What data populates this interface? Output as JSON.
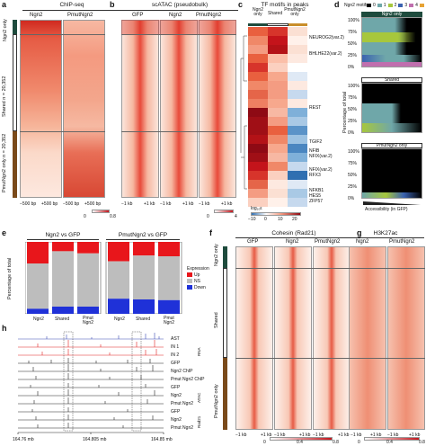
{
  "panels": {
    "a": {
      "letter": "a",
      "title": "ChIP-seq",
      "cols": [
        "Ngn2",
        "PmutNgn2"
      ],
      "rows": [
        "Ngn2 only",
        "Shared\nn = 20,352",
        "PmutNgn2 only\nn = 20,352"
      ],
      "xticks": [
        "−500 bp",
        "+500 bp",
        "−500 bp",
        "+500 bp"
      ],
      "scale": [
        "0",
        "0.8"
      ]
    },
    "b": {
      "letter": "b",
      "title": "scATAC (pseudobulk)",
      "cols": [
        "GFP",
        "Ngn2",
        "PmutNgn2"
      ],
      "xticks": [
        "−1 kb",
        "+1 kb",
        "−1 kb",
        "+1 kb",
        "−1 kb",
        "+1 kb"
      ],
      "scale": [
        "0",
        "4"
      ]
    },
    "c": {
      "letter": "c",
      "title": "TF motifs in peaks",
      "cols": [
        "Ngn2 only",
        "Shared",
        "PmutNgn2 only"
      ],
      "labels": [
        "NEUROG2(var.2)",
        "BHLHE22(var.2)",
        "REST",
        "TGIF2",
        "NFIB",
        "NFIX(var.2)",
        "NFIX(var.2)",
        "RFX3",
        "NFKB1",
        "HES5",
        "ZFP57"
      ],
      "scale_label": "log₁₀ε",
      "scale": [
        "−10",
        "0",
        "10",
        "20"
      ]
    },
    "d": {
      "letter": "d",
      "legend_title": "Ngn2 motifs",
      "legend_items": [
        "0",
        "1",
        "2",
        "3",
        "4",
        "5"
      ],
      "sections": [
        "Ngn2 only",
        "Shared",
        "PmutNgn2 only"
      ],
      "ylabel": "Percentage of total",
      "yticks": [
        "100%",
        "75%",
        "50%",
        "25%",
        "0%"
      ],
      "xlabel": "Accessibility (in GFP)"
    },
    "e": {
      "letter": "e",
      "title_left": "Ngn2 vs GFP",
      "title_right": "PmutNgn2 vs GFP",
      "ylabel": "Percentage of total",
      "xcats_left": [
        "Ngn2",
        "Shared",
        "Pmut\nNgn2"
      ],
      "xcats_right": [
        "Ngn2",
        "Shared",
        "Pmut\nNgn2"
      ],
      "legend_title": "Expression",
      "legend_items": [
        "Up",
        "NS",
        "Down"
      ]
    },
    "f": {
      "letter": "f",
      "title": "Cohesin (Rad21)",
      "cols": [
        "GFP",
        "Ngn2",
        "PmutNgn2"
      ],
      "xticks": [
        "−1 kb",
        "+1 kb",
        "−1 kb",
        "+1 kb",
        "−1 kb",
        "+1 kb"
      ],
      "scale": [
        "0",
        "0.4",
        "0.8"
      ]
    },
    "g": {
      "letter": "g",
      "title": "H3K27ac",
      "cols": [
        "Ngn2",
        "PmutNgn2"
      ],
      "xticks": [
        "−1 kb",
        "+1 kb",
        "−1 kb",
        "+1 kb"
      ],
      "scale": [
        "0",
        "0.4",
        "0.8"
      ]
    },
    "h": {
      "letter": "h",
      "tracks": [
        "AST",
        "IN 1",
        "IN 2",
        "GFP",
        "Ngn2 ChIP",
        "Pmut Ngn2 ChIP",
        "GFP",
        "Ngn2",
        "Pmut Ngn2",
        "GFP",
        "Ngn2",
        "Pmut Ngn2"
      ],
      "groups": [
        "RNA",
        "ATAC",
        "Rad21"
      ],
      "coords": [
        "164.76 mb",
        "164.805 mb",
        "164.85 mb"
      ]
    },
    "fg_rows": [
      "Ngn2 only",
      "Shared",
      "PmutNgn2 only"
    ]
  },
  "colors": {
    "heat_high": "#c4141b",
    "heat_low": "#fdece4",
    "up": "#e8161b",
    "ns": "#bdbdbd",
    "down": "#1f31d8",
    "ngn2_only_bar": "#1e4b3d",
    "shared_bar": "#ffffff",
    "pmut_bar": "#7a4a1a"
  },
  "chart_data": [
    {
      "type": "bar",
      "title": "Ngn2 vs GFP",
      "categories": [
        "Ngn2",
        "Shared",
        "Pmut Ngn2"
      ],
      "series": [
        {
          "name": "Up",
          "values": [
            30,
            13,
            16
          ]
        },
        {
          "name": "NS",
          "values": [
            63,
            77,
            74
          ]
        },
        {
          "name": "Down",
          "values": [
            7,
            10,
            10
          ]
        }
      ],
      "ylabel": "Percentage of total",
      "ylim": [
        0,
        100
      ]
    },
    {
      "type": "bar",
      "title": "PmutNgn2 vs GFP",
      "categories": [
        "Ngn2",
        "Shared",
        "Pmut Ngn2"
      ],
      "series": [
        {
          "name": "Up",
          "values": [
            27,
            19,
            20
          ]
        },
        {
          "name": "NS",
          "values": [
            52,
            61,
            61
          ]
        },
        {
          "name": "Down",
          "values": [
            21,
            20,
            19
          ]
        }
      ],
      "ylabel": "Percentage of total",
      "ylim": [
        0,
        100
      ]
    }
  ]
}
